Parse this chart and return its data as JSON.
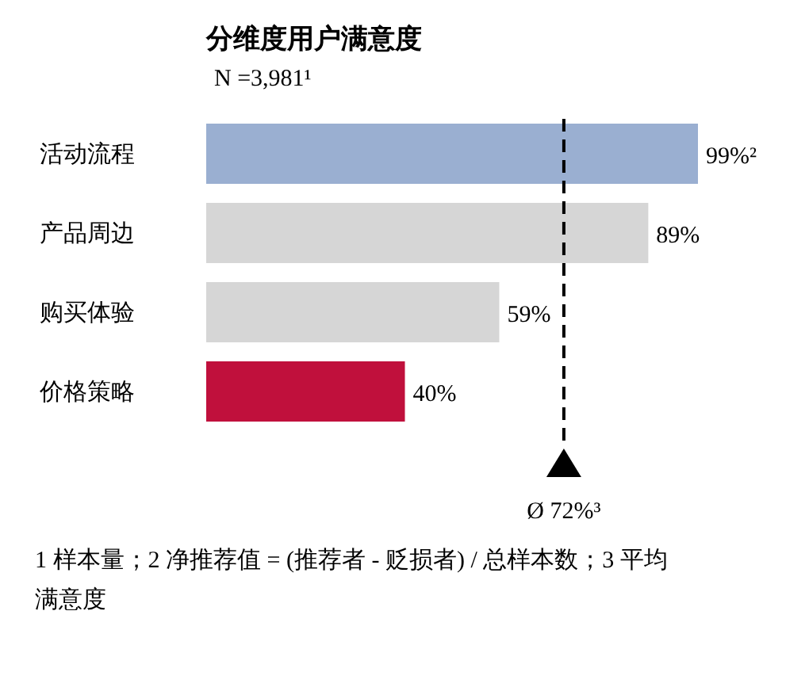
{
  "chart_data": {
    "type": "bar",
    "orientation": "horizontal",
    "title": "分维度用户满意度",
    "subtitle": "N =3,981¹",
    "categories": [
      "活动流程",
      "产品周边",
      "购买体验",
      "价格策略"
    ],
    "values": [
      99,
      89,
      59,
      40
    ],
    "colors": [
      "#9aafd1",
      "#d6d6d6",
      "#d6d6d6",
      "#c0103c"
    ],
    "value_labels": [
      "99%²",
      "89%",
      "59%",
      "40%"
    ],
    "ref_lines": [
      {
        "axis": "x",
        "value": 72,
        "label": "Ø 72%³",
        "line_style": "dashed"
      }
    ],
    "annotations": [
      "1 样本量；2 净推荐值 = (推荐者 - 贬损者) / 总样本数；3 平均满意度"
    ]
  }
}
